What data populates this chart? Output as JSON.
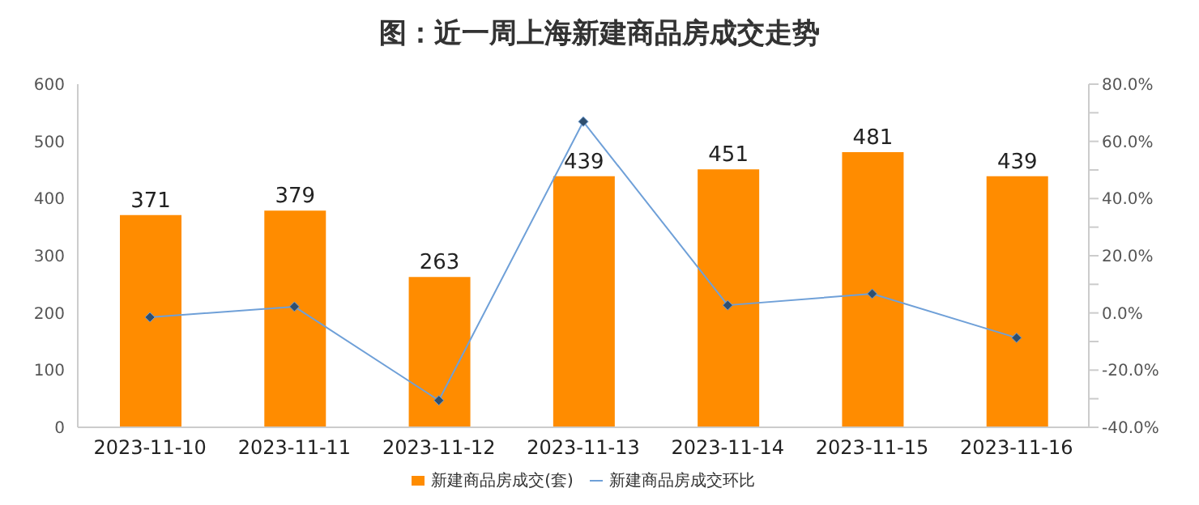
{
  "chart_data": {
    "type": "bar",
    "title": "图：近一周上海新建商品房成交走势",
    "categories": [
      "2023-11-10",
      "2023-11-11",
      "2023-11-12",
      "2023-11-13",
      "2023-11-14",
      "2023-11-15",
      "2023-11-16"
    ],
    "series": [
      {
        "name": "新建商品房成交(套)",
        "color": "#ff8c00",
        "values": [
          371,
          379,
          263,
          439,
          451,
          481,
          439
        ],
        "data_labels": true
      },
      {
        "name": "新建商品房成交环比",
        "type": "line",
        "axis": "y2",
        "color": "#6fa0d8",
        "marker": "diamond",
        "values": [
          -1.5,
          2.2,
          -30.6,
          66.9,
          2.7,
          6.7,
          -8.7
        ]
      }
    ],
    "ylim": [
      0,
      600
    ],
    "yticks": [
      0,
      100,
      200,
      300,
      400,
      500,
      600
    ],
    "y2lim": [
      -40,
      80
    ],
    "y2ticks": [
      {
        "value": -40,
        "label": "-40.0%"
      },
      {
        "value": -30,
        "label": null
      },
      {
        "value": -20,
        "label": "-20.0%"
      },
      {
        "value": -10,
        "label": null
      },
      {
        "value": 0,
        "label": "0.0%"
      },
      {
        "value": 10,
        "label": null
      },
      {
        "value": 20,
        "label": "20.0%"
      },
      {
        "value": 30,
        "label": null
      },
      {
        "value": 40,
        "label": "40.0%"
      },
      {
        "value": 50,
        "label": null
      },
      {
        "value": 60,
        "label": "60.0%"
      },
      {
        "value": 70,
        "label": null
      },
      {
        "value": 80,
        "label": "80.0%"
      }
    ],
    "legend": "bottom"
  }
}
